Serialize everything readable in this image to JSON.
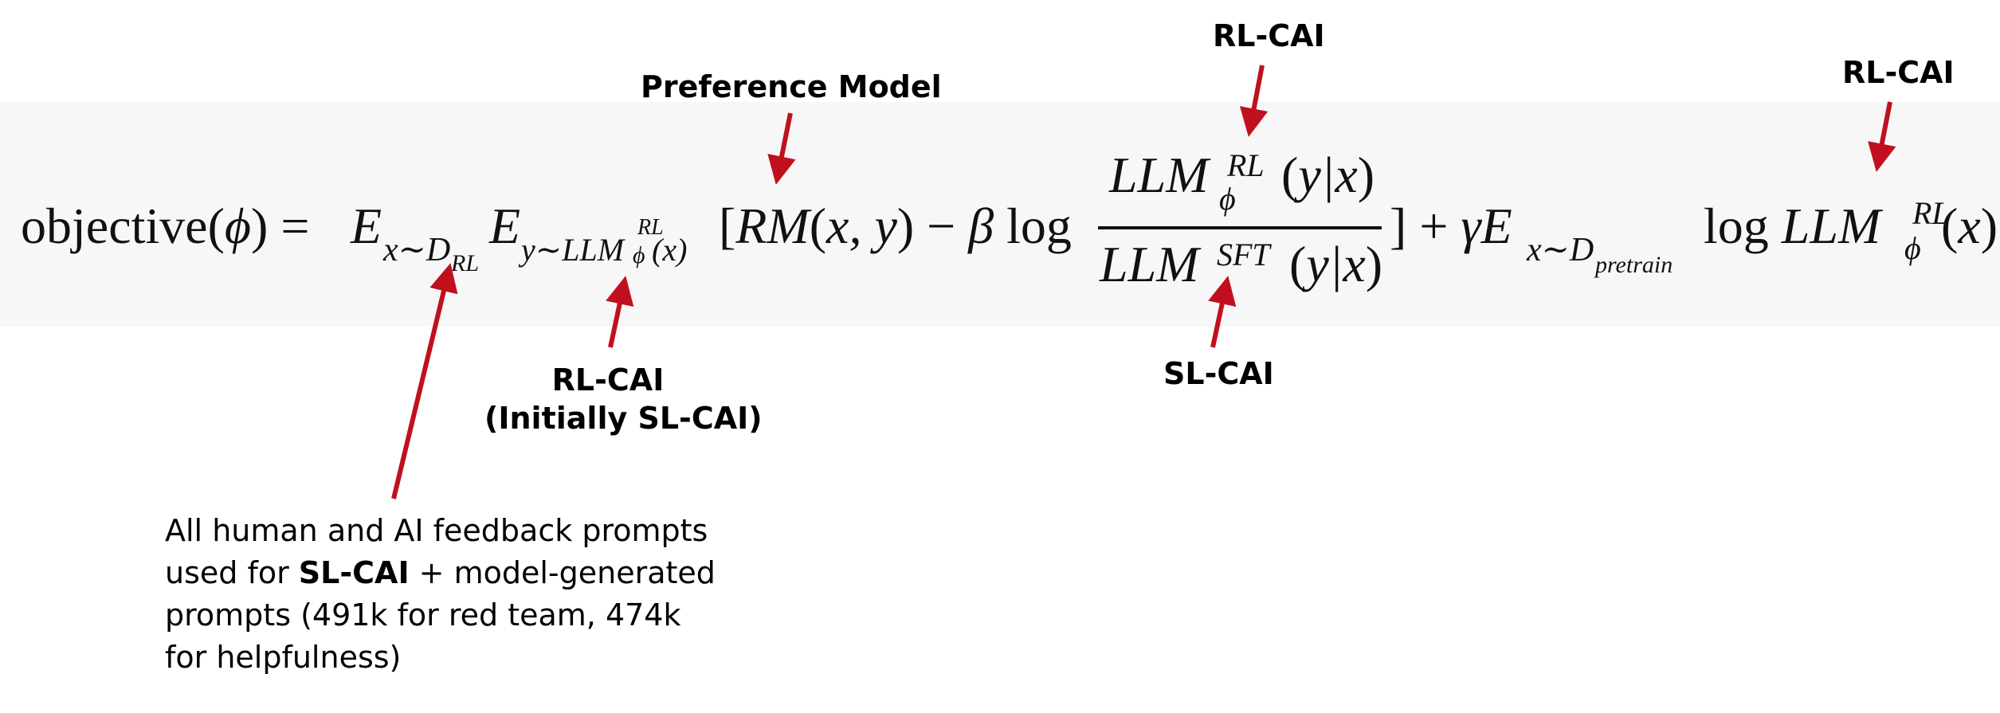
{
  "equation": {
    "objective": "objective",
    "phi": "ϕ",
    "E": "E",
    "x_sim": "x∼",
    "D": "D",
    "D_sub_RL": "RL",
    "y_sim": "y∼",
    "LLM": "LLM",
    "RL": "RL",
    "x": "x",
    "RM": "RM",
    "x_comma_y": "x, y",
    "minus": "−",
    "beta": "β",
    "log": "log",
    "y_given_x": "y|x",
    "SFT": "SFT",
    "plus": "+",
    "gamma": "γ",
    "pretrain": "pretrain",
    "equals": "="
  },
  "annotations": {
    "preference_model": "Preference Model",
    "rl_cai_top_middle": "RL-CAI",
    "rl_cai_top_right": "RL-CAI",
    "rl_cai_initially_line1": "RL-CAI",
    "rl_cai_initially_line2": "(Initially SL-CAI)",
    "sl_cai_bottom": "SL-CAI",
    "prompts_note": {
      "line1": "All human and AI feedback prompts",
      "line2_pre": "used for ",
      "line2_bold": "SL-CAI",
      "line2_post": " + model-generated",
      "line3": "prompts (491k for red team, 474k",
      "line4": "for helpfulness)"
    }
  },
  "colors": {
    "arrow": "#c0101e",
    "band": "#f7f7f7",
    "text": "#111111"
  }
}
